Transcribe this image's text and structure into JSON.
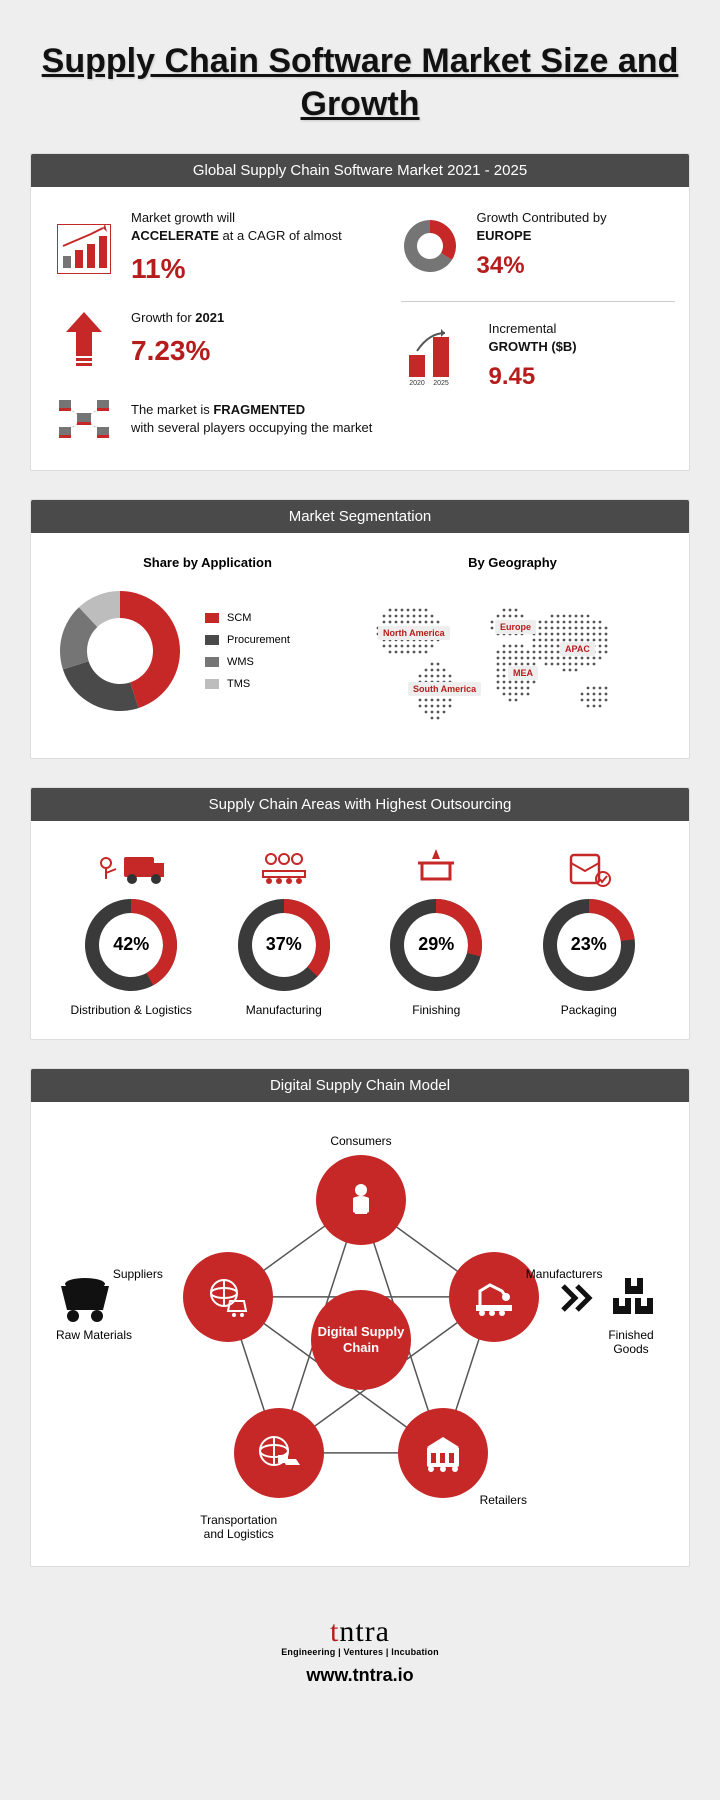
{
  "colors": {
    "accent_red": "#c62828",
    "dark_red": "#b71c1c",
    "header_gray": "#4a4a4a",
    "mid_gray": "#757575",
    "light_gray": "#bdbdbd",
    "bg": "#eeeeee",
    "panel_bg": "#ffffff",
    "divider": "#cccccc"
  },
  "title": "Supply Chain Software Market Size and Growth",
  "section1": {
    "header": "Global Supply Chain Software Market 2021 - 2025",
    "cagr": {
      "pre": "Market growth will",
      "bold": "ACCELERATE",
      "post": " at a CAGR of almost",
      "value": "11%"
    },
    "growth2021": {
      "pre": "Growth for ",
      "bold": "2021",
      "value": "7.23%"
    },
    "fragmented": {
      "pre": "The market is ",
      "bold": "FRAGMENTED",
      "post": " with several players occupying the market"
    },
    "europe": {
      "pre": "Growth Contributed by",
      "bold": "EUROPE",
      "value": "34%",
      "donut_pct": 34
    },
    "incremental": {
      "pre": "Incremental",
      "bold": "GROWTH ($B)",
      "value": "9.45",
      "bar_labels": [
        "2020",
        "2025"
      ]
    }
  },
  "section2": {
    "header": "Market Segmentation",
    "share_title": "Share by Application",
    "geo_title": "By Geography",
    "donut": {
      "slices": [
        {
          "label": "SCM",
          "value": 45,
          "color": "#c62828"
        },
        {
          "label": "Procurement",
          "value": 25,
          "color": "#4a4a4a"
        },
        {
          "label": "WMS",
          "value": 18,
          "color": "#757575"
        },
        {
          "label": "TMS",
          "value": 12,
          "color": "#bdbdbd"
        }
      ],
      "inner_ratio": 0.55
    },
    "regions": [
      "North America",
      "Europe",
      "APAC",
      "South America",
      "MEA"
    ]
  },
  "section3": {
    "header": "Supply Chain Areas with Highest Outsourcing",
    "ring_colors": {
      "fill": "#c62828",
      "track": "#3a3a3a"
    },
    "items": [
      {
        "label": "Distribution & Logistics",
        "pct": 42
      },
      {
        "label": "Manufacturing",
        "pct": 37
      },
      {
        "label": "Finishing",
        "pct": 29
      },
      {
        "label": "Packaging",
        "pct": 23
      }
    ]
  },
  "section4": {
    "header": "Digital Supply Chain Model",
    "center": "Digital Supply Chain",
    "nodes": [
      "Consumers",
      "Manufacturers",
      "Retailers",
      "Transportation and Logistics",
      "Suppliers"
    ],
    "left_label": "Raw Materials",
    "right_label": "Finished Goods"
  },
  "footer": {
    "brand_html_parts": [
      "t",
      "n",
      "tra"
    ],
    "tagline": "Engineering | Ventures | Incubation",
    "url": "www.tntra.io"
  }
}
